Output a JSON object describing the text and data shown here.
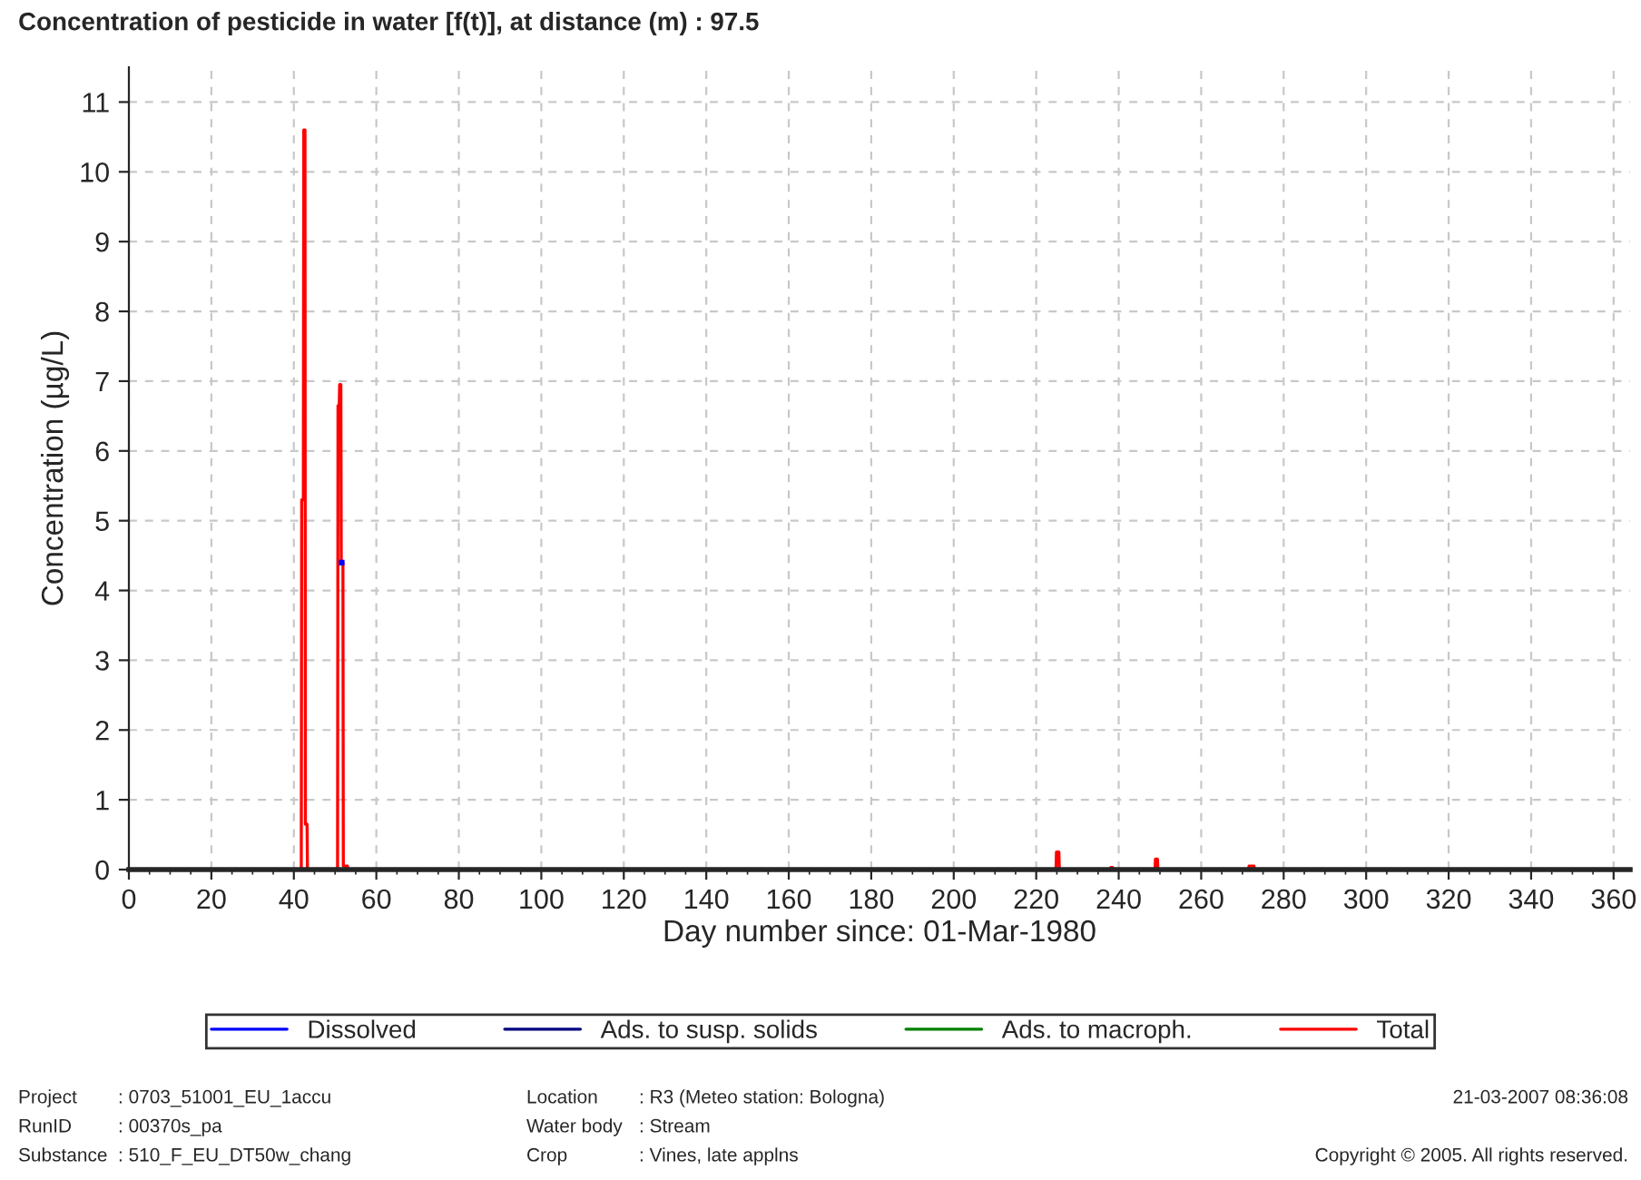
{
  "chart_data": {
    "type": "line",
    "title": "Concentration of pesticide in water [f(t)], at distance (m) : 97.5",
    "xlabel": "Day number since: 01-Mar-1980",
    "ylabel": "Concentration (µg/L)",
    "xlim": [
      0,
      364
    ],
    "xticks": [
      0,
      20,
      40,
      60,
      80,
      100,
      120,
      140,
      160,
      180,
      200,
      220,
      240,
      260,
      280,
      300,
      320,
      340,
      360
    ],
    "ylim": [
      0,
      11.5
    ],
    "yticks": [
      0,
      1,
      2,
      3,
      4,
      5,
      6,
      7,
      8,
      9,
      10,
      11
    ],
    "grid": true,
    "legend": "bottom",
    "line_style": "solid",
    "marker": "none",
    "series": [
      {
        "name": "Dissolved",
        "type": "scatter",
        "marker": "square",
        "color": "#0000ff",
        "x": [
          51.6
        ],
        "values": [
          4.4
        ]
      },
      {
        "name": "Ads. to susp. solids",
        "color": "#000080"
      },
      {
        "name": "Ads. to macroph.",
        "color": "#008000"
      },
      {
        "name": "Total",
        "color": "#ff0000",
        "x": [
          0,
          41.8,
          41.9,
          42.3,
          42.4,
          42.7,
          42.8,
          43.2,
          43.3,
          50.6,
          50.7,
          51.0,
          51.1,
          51.4,
          51.5,
          51.9,
          52.0,
          53.0,
          53.1,
          224.8,
          224.9,
          225.5,
          225.6,
          238.0,
          238.1,
          238.5,
          238.6,
          248.8,
          248.9,
          249.4,
          249.5,
          271.5,
          271.6,
          272.8,
          272.9,
          364
        ],
        "values": [
          0,
          0,
          5.3,
          5.3,
          10.6,
          10.6,
          0.65,
          0.65,
          0,
          0,
          6.65,
          6.65,
          6.95,
          6.95,
          4.4,
          4.4,
          0.05,
          0.05,
          0,
          0,
          0.25,
          0.25,
          0,
          0,
          0.03,
          0.03,
          0,
          0,
          0.15,
          0.15,
          0,
          0,
          0.05,
          0.05,
          0,
          0
        ]
      }
    ],
    "annotations": [
      "Project",
      ": 0703_51001_EU_1accu",
      "Location",
      ": R3 (Meteo station: Bologna)",
      "RunID",
      ": 00370s_pa",
      "Water body",
      ": Stream",
      "Substance",
      ": 510_F_EU_DT50w_chang",
      "Crop",
      ": Vines, late applns",
      "21-03-2007 08:36:08",
      "Copyright © 2005. All rights reserved."
    ]
  }
}
